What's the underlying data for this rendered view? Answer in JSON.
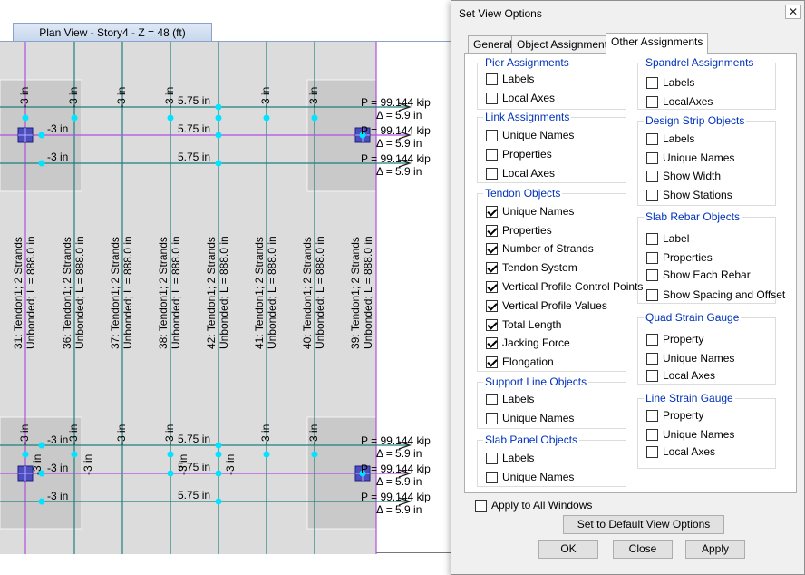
{
  "plan": {
    "tab_title": "Plan View - Story4 - Z = 48 (ft)",
    "tendon_labels": [
      {
        "name": "31: Tendon1; 2 Strands",
        "info": "Unbonded; L = 888.0 in"
      },
      {
        "name": "36: Tendon1; 2 Strands",
        "info": "Unbonded; L = 888.0 in"
      },
      {
        "name": "37: Tendon1; 2 Strands",
        "info": "Unbonded; L = 888.0 in"
      },
      {
        "name": "38: Tendon1; 2 Strands",
        "info": "Unbonded; L = 888.0 in"
      },
      {
        "name": "42: Tendon1; 2 Strands",
        "info": "Unbonded; L = 888.0 in"
      },
      {
        "name": "41: Tendon1; 2 Strands",
        "info": "Unbonded; L = 888.0 in"
      },
      {
        "name": "40: Tendon1; 2 Strands",
        "info": "Unbonded; L = 888.0 in"
      },
      {
        "name": "39: Tendon1; 2 Strands",
        "info": "Unbonded; L = 888.0 in"
      }
    ],
    "profile_low": "-3 in",
    "profile_high": "5.75 in",
    "jacking_force": "P = 99.144 kip",
    "elongation": "Δ = 5.9 in"
  },
  "dialog": {
    "title": "Set View Options",
    "close_glyph": "✕",
    "tabs": [
      "General",
      "Object Assignments",
      "Other Assignments"
    ],
    "groups": {
      "pier": {
        "title": "Pier Assignments",
        "items": [
          {
            "label": "Labels",
            "checked": false
          },
          {
            "label": "Local Axes",
            "checked": false
          }
        ]
      },
      "link": {
        "title": "Link Assignments",
        "items": [
          {
            "label": "Unique Names",
            "checked": false
          },
          {
            "label": "Properties",
            "checked": false
          },
          {
            "label": "Local Axes",
            "checked": false
          }
        ]
      },
      "tendon": {
        "title": "Tendon Objects",
        "items": [
          {
            "label": "Unique Names",
            "checked": true
          },
          {
            "label": "Properties",
            "checked": true
          },
          {
            "label": "Number of Strands",
            "checked": true
          },
          {
            "label": "Tendon System",
            "checked": true
          },
          {
            "label": "Vertical Profile Control Points",
            "checked": true
          },
          {
            "label": "Vertical Profile Values",
            "checked": true
          },
          {
            "label": "Total Length",
            "checked": true
          },
          {
            "label": "Jacking Force",
            "checked": true
          },
          {
            "label": "Elongation",
            "checked": true
          }
        ]
      },
      "support": {
        "title": "Support Line Objects",
        "items": [
          {
            "label": "Labels",
            "checked": false
          },
          {
            "label": "Unique Names",
            "checked": false
          }
        ]
      },
      "slabpanel": {
        "title": "Slab Panel Objects",
        "items": [
          {
            "label": "Labels",
            "checked": false
          },
          {
            "label": "Unique Names",
            "checked": false
          }
        ]
      },
      "spandrel": {
        "title": "Spandrel Assignments",
        "items": [
          {
            "label": "Labels",
            "checked": false
          },
          {
            "label": "LocalAxes",
            "checked": false
          }
        ]
      },
      "strip": {
        "title": "Design Strip Objects",
        "items": [
          {
            "label": "Labels",
            "checked": false
          },
          {
            "label": "Unique Names",
            "checked": false
          },
          {
            "label": "Show Width",
            "checked": false
          },
          {
            "label": "Show Stations",
            "checked": false
          }
        ]
      },
      "rebar": {
        "title": "Slab Rebar Objects",
        "items": [
          {
            "label": "Label",
            "checked": false
          },
          {
            "label": "Properties",
            "checked": false
          },
          {
            "label": "Show Each Rebar",
            "checked": false
          },
          {
            "label": "Show Spacing and Offset",
            "checked": false
          }
        ]
      },
      "quad": {
        "title": "Quad Strain Gauge",
        "items": [
          {
            "label": "Property",
            "checked": false
          },
          {
            "label": "Unique Names",
            "checked": false
          },
          {
            "label": "Local Axes",
            "checked": false
          }
        ]
      },
      "linegauge": {
        "title": "Line Strain Gauge",
        "items": [
          {
            "label": "Property",
            "checked": false
          },
          {
            "label": "Unique Names",
            "checked": false
          },
          {
            "label": "Local Axes",
            "checked": false
          }
        ]
      }
    },
    "apply_all": {
      "label": "Apply to All Windows",
      "checked": false
    },
    "buttons": {
      "default": "Set to Default View Options",
      "ok": "OK",
      "close": "Close",
      "apply": "Apply"
    }
  }
}
